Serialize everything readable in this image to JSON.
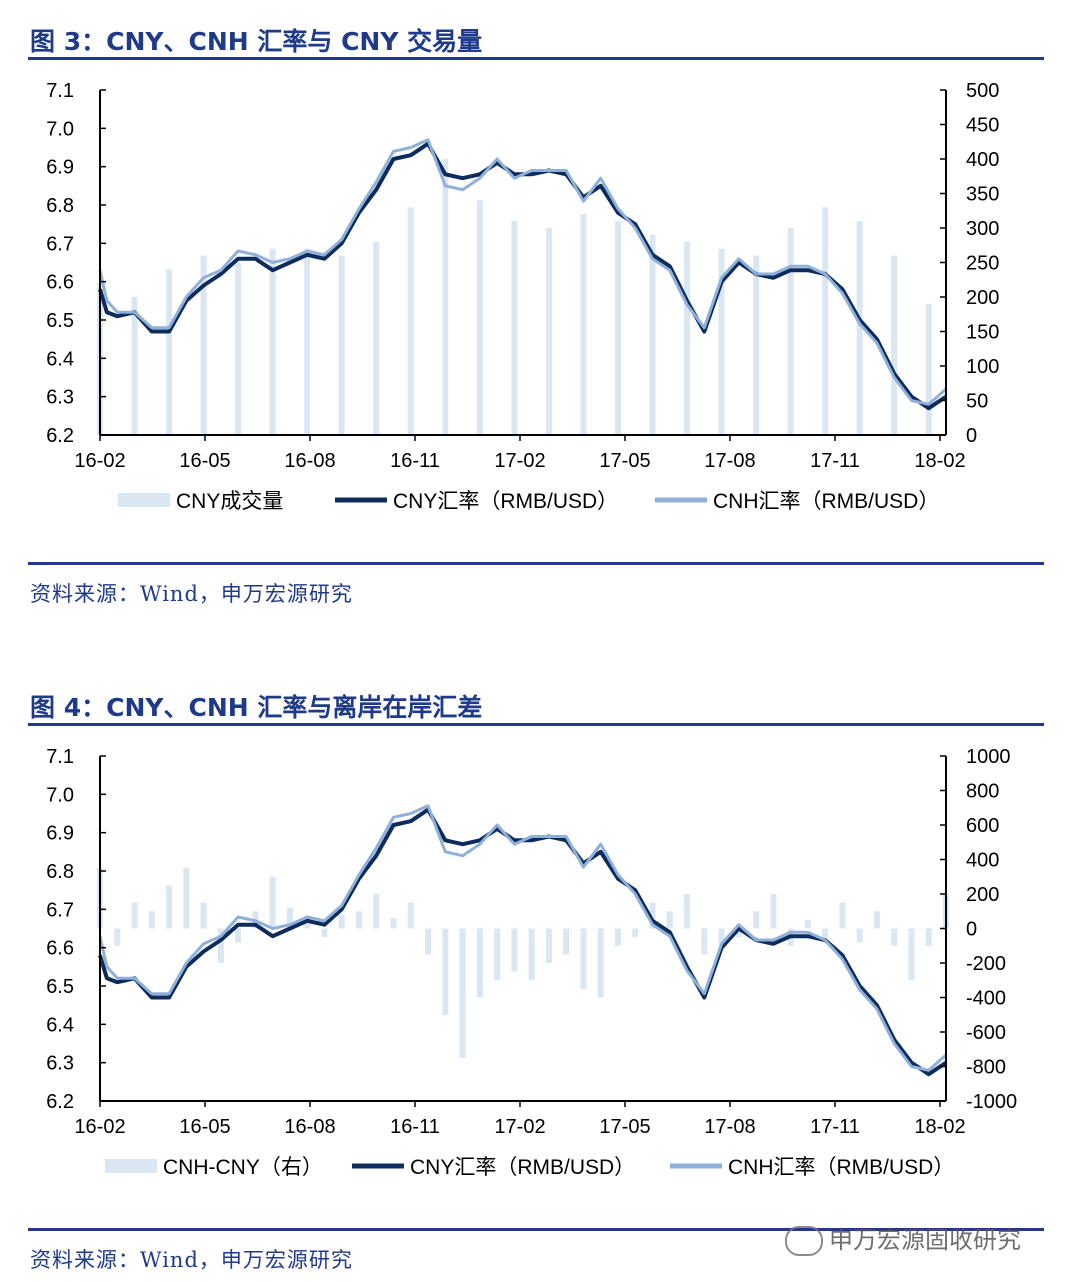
{
  "figures": [
    {
      "title": "图 3：CNY、CNH 汇率与 CNY 交易量",
      "source": "资料来源：Wind，申万宏源研究"
    },
    {
      "title": "图 4：CNY、CNH 汇率与离岸在岸汇差",
      "source": "资料来源：Wind，申万宏源研究"
    }
  ],
  "watermark": "申万宏源固收研究",
  "colors": {
    "cny": "#0d2b5c",
    "cnh": "#8fb0d9",
    "bars": "#dbe6f3",
    "axis": "#000000",
    "rule": "#25378a"
  },
  "chart_data": [
    {
      "type": "line",
      "x_ticks": [
        "16-02",
        "16-05",
        "16-08",
        "16-11",
        "17-02",
        "17-05",
        "17-08",
        "17-11",
        "18-02"
      ],
      "ylim_left": [
        6.2,
        7.1
      ],
      "yticks_left": [
        "7.1",
        "7.0",
        "6.9",
        "6.8",
        "6.7",
        "6.6",
        "6.5",
        "6.4",
        "6.3",
        "6.2"
      ],
      "ylim_right": [
        0,
        500
      ],
      "yticks_right": [
        "500",
        "450",
        "400",
        "350",
        "300",
        "250",
        "200",
        "150",
        "100",
        "50",
        "0"
      ],
      "legend": [
        "CNY成交量",
        "CNY汇率（RMB/USD）",
        "CNH汇率（RMB/USD）"
      ],
      "series": [
        {
          "name": "CNY汇率（RMB/USD）",
          "axis": "left",
          "x": [
            0,
            0.2,
            0.5,
            1,
            1.5,
            2,
            2.5,
            3,
            3.5,
            4,
            4.5,
            5,
            5.5,
            6,
            6.5,
            7,
            7.5,
            8,
            8.5,
            9,
            9.5,
            10,
            10.5,
            11,
            11.5,
            12,
            12.5,
            13,
            13.5,
            14,
            14.5,
            15,
            15.5,
            16,
            16.5,
            17,
            17.5,
            18,
            18.5,
            19,
            19.5,
            20,
            20.5,
            21,
            21.5,
            22,
            22.5,
            23,
            23.5,
            24,
            24.5
          ],
          "values": [
            6.58,
            6.52,
            6.51,
            6.52,
            6.47,
            6.47,
            6.55,
            6.59,
            6.62,
            6.66,
            6.66,
            6.63,
            6.65,
            6.67,
            6.66,
            6.7,
            6.78,
            6.84,
            6.92,
            6.93,
            6.96,
            6.88,
            6.87,
            6.88,
            6.91,
            6.88,
            6.88,
            6.89,
            6.88,
            6.82,
            6.85,
            6.78,
            6.75,
            6.67,
            6.64,
            6.55,
            6.47,
            6.6,
            6.65,
            6.62,
            6.61,
            6.63,
            6.63,
            6.62,
            6.58,
            6.5,
            6.45,
            6.36,
            6.3,
            6.27,
            6.3
          ]
        },
        {
          "name": "CNH汇率（RMB/USD）",
          "axis": "left",
          "x": [
            0,
            0.2,
            0.5,
            1,
            1.5,
            2,
            2.5,
            3,
            3.5,
            4,
            4.5,
            5,
            5.5,
            6,
            6.5,
            7,
            7.5,
            8,
            8.5,
            9,
            9.5,
            10,
            10.5,
            11,
            11.5,
            12,
            12.5,
            13,
            13.5,
            14,
            14.5,
            15,
            15.5,
            16,
            16.5,
            17,
            17.5,
            18,
            18.5,
            19,
            19.5,
            20,
            20.5,
            21,
            21.5,
            22,
            22.5,
            23,
            23.5,
            24,
            24.5
          ],
          "values": [
            6.63,
            6.55,
            6.52,
            6.52,
            6.48,
            6.48,
            6.56,
            6.61,
            6.63,
            6.68,
            6.67,
            6.65,
            6.66,
            6.68,
            6.67,
            6.71,
            6.79,
            6.86,
            6.94,
            6.95,
            6.97,
            6.85,
            6.84,
            6.87,
            6.92,
            6.87,
            6.89,
            6.89,
            6.89,
            6.81,
            6.87,
            6.79,
            6.74,
            6.66,
            6.63,
            6.54,
            6.48,
            6.61,
            6.66,
            6.62,
            6.62,
            6.64,
            6.64,
            6.62,
            6.57,
            6.49,
            6.44,
            6.35,
            6.29,
            6.28,
            6.32
          ]
        },
        {
          "name": "CNY成交量",
          "axis": "right",
          "type": "bar",
          "x": [
            0,
            1,
            2,
            3,
            4,
            5,
            6,
            7,
            8,
            9,
            10,
            11,
            12,
            13,
            14,
            15,
            16,
            17,
            18,
            19,
            20,
            21,
            22,
            23,
            24
          ],
          "values": [
            220,
            200,
            240,
            260,
            250,
            270,
            270,
            260,
            280,
            330,
            400,
            340,
            310,
            300,
            320,
            310,
            290,
            280,
            270,
            260,
            300,
            330,
            310,
            260,
            190
          ]
        }
      ]
    },
    {
      "type": "line",
      "x_ticks": [
        "16-02",
        "16-05",
        "16-08",
        "16-11",
        "17-02",
        "17-05",
        "17-08",
        "17-11",
        "18-02"
      ],
      "ylim_left": [
        6.2,
        7.1
      ],
      "yticks_left": [
        "7.1",
        "7.0",
        "6.9",
        "6.8",
        "6.7",
        "6.6",
        "6.5",
        "6.4",
        "6.3",
        "6.2"
      ],
      "ylim_right": [
        -1000,
        1000
      ],
      "yticks_right": [
        "1000",
        "800",
        "600",
        "400",
        "200",
        "0",
        "-200",
        "-400",
        "-600",
        "-800",
        "-1000"
      ],
      "legend": [
        "CNH-CNY（右）",
        "CNY汇率（RMB/USD）",
        "CNH汇率（RMB/USD）"
      ],
      "series": [
        {
          "name": "CNY汇率（RMB/USD）",
          "axis": "left",
          "ref": 0
        },
        {
          "name": "CNH汇率（RMB/USD）",
          "axis": "left",
          "ref": 1
        },
        {
          "name": "CNH-CNY（右）",
          "axis": "right",
          "type": "bar",
          "x": [
            0,
            0.5,
            1,
            1.5,
            2,
            2.5,
            3,
            3.5,
            4,
            4.5,
            5,
            5.5,
            6,
            6.5,
            7,
            7.5,
            8,
            8.5,
            9,
            9.5,
            10,
            10.5,
            11,
            11.5,
            12,
            12.5,
            13,
            13.5,
            14,
            14.5,
            15,
            15.5,
            16,
            16.5,
            17,
            17.5,
            18,
            18.5,
            19,
            19.5,
            20,
            20.5,
            21,
            21.5,
            22,
            22.5,
            23,
            23.5,
            24,
            24.5
          ],
          "values": [
            350,
            -100,
            150,
            100,
            250,
            350,
            150,
            -200,
            -80,
            100,
            300,
            120,
            60,
            -50,
            80,
            100,
            200,
            60,
            150,
            -150,
            -500,
            -750,
            -400,
            -300,
            -250,
            -300,
            -200,
            -150,
            -350,
            -400,
            -100,
            -50,
            150,
            100,
            200,
            -150,
            -100,
            -50,
            100,
            200,
            -100,
            50,
            -50,
            150,
            -80,
            100,
            -100,
            -300,
            -100,
            200
          ]
        }
      ]
    }
  ]
}
